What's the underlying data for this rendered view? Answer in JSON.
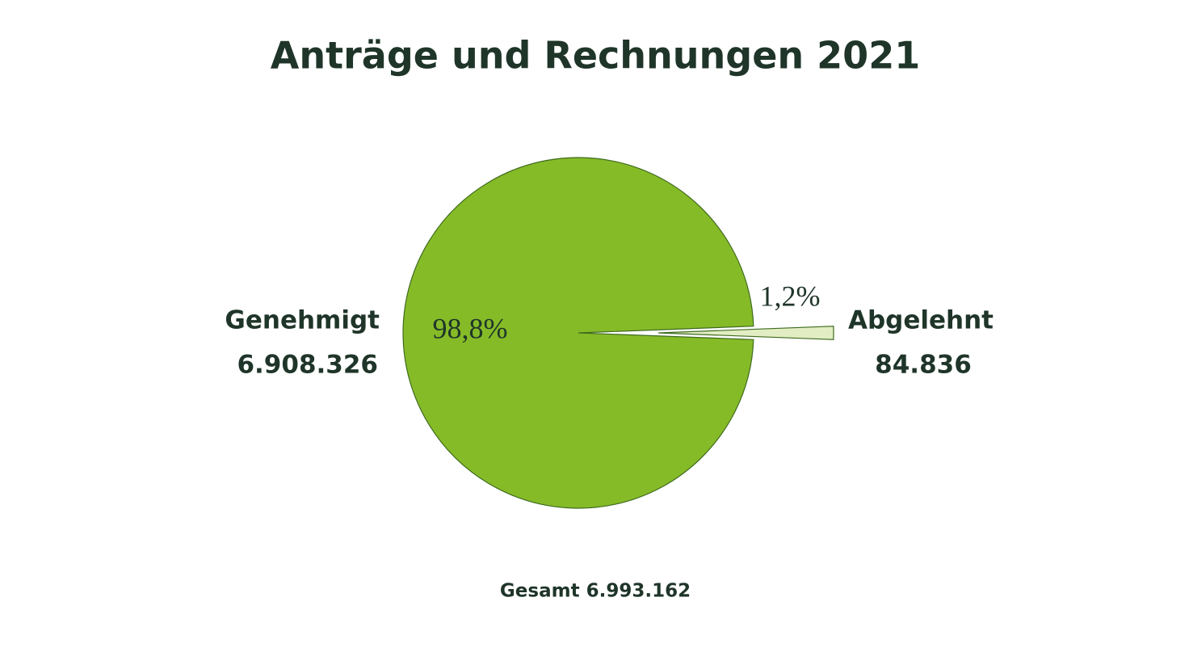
{
  "chart_data": {
    "type": "pie",
    "title": "Anträge und Rechnungen 2021",
    "categories": [
      "Genehmigt",
      "Abgelehnt"
    ],
    "values": [
      6908326,
      84836
    ],
    "value_labels": [
      "6.908.326",
      "84.836"
    ],
    "percentages": [
      98.8,
      1.2
    ],
    "percentage_labels": [
      "98,8%",
      "1,2%"
    ],
    "colors": [
      "#86bb28",
      "#e2edc3"
    ],
    "total_label": "Gesamt 6.993.162"
  }
}
